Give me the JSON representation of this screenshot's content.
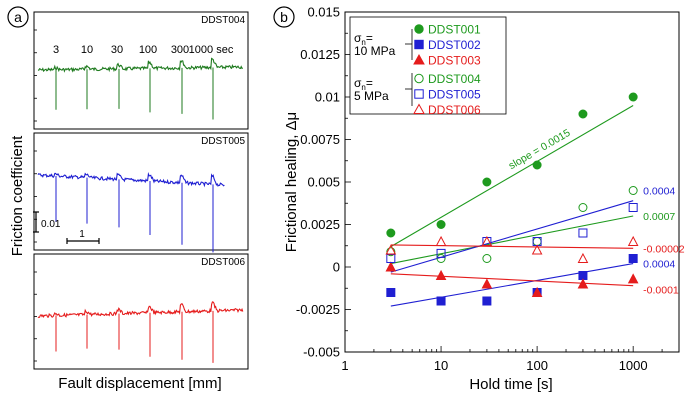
{
  "chart_data": [
    {
      "type": "line",
      "panel_label": "a",
      "xlabel": "Fault displacement [mm]",
      "ylabel": "Friction coefficient",
      "scale_bar_y": "0.01",
      "scale_bar_x": "1",
      "hold_times": [
        "3",
        "10",
        "30",
        "100",
        "300",
        "1000 sec"
      ],
      "panels": [
        {
          "name": "DDST004",
          "color": "#1e7a1e"
        },
        {
          "name": "DDST005",
          "color": "#1f1fd2"
        },
        {
          "name": "DDST006",
          "color": "#e51c1c"
        }
      ]
    },
    {
      "type": "scatter",
      "panel_label": "b",
      "xlabel": "Hold time [s]",
      "ylabel": "Frictional healing, Δμ",
      "xscale": "log",
      "xlim": [
        1,
        3000
      ],
      "ylim": [
        -0.005,
        0.015
      ],
      "x_ticks": [
        "1",
        "10",
        "100",
        "1000"
      ],
      "y_ticks": [
        "0.015",
        "0.0125",
        "0.01",
        "0.0075",
        "0.005",
        "0.0025",
        "0",
        "-0.0025",
        "-0.005"
      ],
      "legend_groups": [
        {
          "sigma": "σ",
          "sub": "n",
          "eq": "=",
          "stress": "10 MPa"
        },
        {
          "sigma": "σ",
          "sub": "n",
          "eq": "=",
          "stress": "5 MPa"
        }
      ],
      "series": [
        {
          "name": "DDST001",
          "color": "#1e9a1e",
          "marker": "circle",
          "filled": true,
          "x": [
            3,
            10,
            30,
            100,
            300,
            1000
          ],
          "y": [
            0.002,
            0.0025,
            0.005,
            0.006,
            0.009,
            0.01
          ],
          "fit": [
            0.0012,
            0.0095
          ],
          "label": ""
        },
        {
          "name": "DDST002",
          "color": "#1f1fd2",
          "marker": "square",
          "filled": true,
          "x": [
            3,
            10,
            30,
            100,
            300,
            1000
          ],
          "y": [
            -0.0015,
            -0.002,
            -0.002,
            -0.0015,
            -0.0005,
            0.0005
          ],
          "fit": [
            -0.0023,
            0.0002
          ],
          "label": "0.0004"
        },
        {
          "name": "DDST003",
          "color": "#e51c1c",
          "marker": "triangle",
          "filled": true,
          "x": [
            3,
            10,
            30,
            100,
            300,
            1000
          ],
          "y": [
            0,
            -0.0005,
            -0.001,
            -0.0015,
            -0.001,
            -0.0007
          ],
          "fit": [
            -0.0004,
            -0.0011
          ],
          "label": "-0.0001"
        },
        {
          "name": "DDST004",
          "color": "#1e9a1e",
          "marker": "circle",
          "filled": false,
          "x": [
            3,
            10,
            30,
            100,
            300,
            1000
          ],
          "y": [
            0.0009,
            0.0005,
            0.0005,
            0.0015,
            0.0035,
            0.0045
          ],
          "fit": [
            0.0002,
            0.003
          ],
          "label": "0.0007"
        },
        {
          "name": "DDST005",
          "color": "#1f1fd2",
          "marker": "square",
          "filled": false,
          "x": [
            3,
            10,
            30,
            100,
            300,
            1000
          ],
          "y": [
            0.0005,
            0.0008,
            0.0015,
            0.0015,
            0.002,
            0.0035
          ],
          "fit": [
            -0.0003,
            0.0039
          ],
          "label": "0.0004"
        },
        {
          "name": "DDST006",
          "color": "#e51c1c",
          "marker": "triangle",
          "filled": false,
          "x": [
            3,
            10,
            30,
            100,
            300,
            1000
          ],
          "y": [
            0.001,
            0.0015,
            0.0015,
            0.001,
            0.0005,
            0.0015
          ],
          "fit": [
            0.0013,
            0.0011
          ],
          "label": "-0.00002"
        }
      ],
      "annotations": [
        {
          "text": "slope = 0.0015",
          "color": "#1e9a1e"
        }
      ]
    }
  ]
}
